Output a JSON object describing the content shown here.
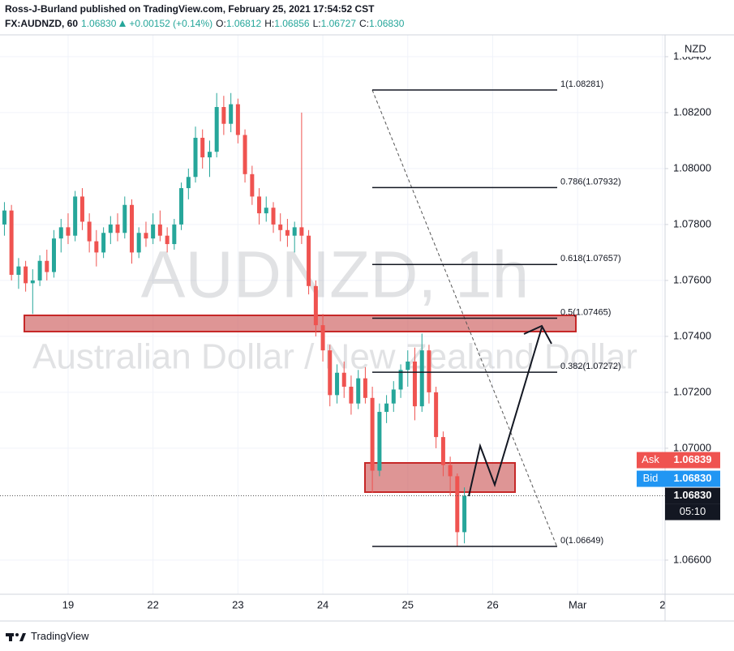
{
  "header": {
    "published": "Ross-J-Burland published on TradingView.com, February 25, 2021 17:54:52 CST",
    "symbol": "FX:AUDNZD, 60",
    "last": "1.06830",
    "change": "+0.00152 (+0.14%)",
    "ohlc": [
      {
        "key": "O:",
        "value": "1.06812"
      },
      {
        "key": "H:",
        "value": "1.06856"
      },
      {
        "key": "L:",
        "value": "1.06727"
      },
      {
        "key": "C:",
        "value": "1.06830"
      }
    ]
  },
  "chart_data": {
    "type": "candlestick",
    "title": "AUDNZD, 1h",
    "subtitle": "Australian Dollar / New Zealand Dollar",
    "currency": "NZD",
    "up_color": "#26a69a",
    "down_color": "#ef5350",
    "grid": true,
    "xlim": [
      -0.802,
      7.03
    ],
    "ylim": [
      1.06478,
      1.08478
    ],
    "xticks": [
      {
        "value": 0,
        "label": "19"
      },
      {
        "value": 1,
        "label": "22"
      },
      {
        "value": 2,
        "label": "23"
      },
      {
        "value": 3,
        "label": "24"
      },
      {
        "value": 4,
        "label": "25"
      },
      {
        "value": 5,
        "label": "26"
      },
      {
        "value": 6,
        "label": "Mar"
      },
      {
        "value": 7,
        "label": "2"
      }
    ],
    "yticks": [
      {
        "value": 1.066,
        "label": "1.06600"
      },
      {
        "value": 1.07,
        "label": "1.07000"
      },
      {
        "value": 1.072,
        "label": "1.07200"
      },
      {
        "value": 1.074,
        "label": "1.07400"
      },
      {
        "value": 1.076,
        "label": "1.07600"
      },
      {
        "value": 1.078,
        "label": "1.07800"
      },
      {
        "value": 1.08,
        "label": "1.08000"
      },
      {
        "value": 1.082,
        "label": "1.08200"
      },
      {
        "value": 1.084,
        "label": "1.08400"
      }
    ],
    "x": [
      -0.75,
      -0.667,
      -0.583,
      -0.5,
      -0.417,
      -0.333,
      -0.25,
      -0.167,
      -0.083,
      0,
      0.083,
      0.167,
      0.25,
      0.333,
      0.417,
      0.5,
      0.583,
      0.667,
      0.75,
      0.833,
      0.917,
      1,
      1.083,
      1.167,
      1.25,
      1.333,
      1.417,
      1.5,
      1.583,
      1.667,
      1.75,
      1.833,
      1.917,
      2,
      2.083,
      2.167,
      2.25,
      2.333,
      2.417,
      2.5,
      2.583,
      2.667,
      2.75,
      2.833,
      2.917,
      3,
      3.083,
      3.167,
      3.25,
      3.333,
      3.417,
      3.5,
      3.583,
      3.667,
      3.75,
      3.833,
      3.917,
      4,
      4.083,
      4.167,
      4.25,
      4.333,
      4.417,
      4.5,
      4.583,
      4.667
    ],
    "open": [
      1.078,
      1.0785,
      1.0762,
      1.0765,
      1.0759,
      1.076,
      1.0767,
      1.0763,
      1.0775,
      1.0779,
      1.0776,
      1.079,
      1.0781,
      1.0774,
      1.077,
      1.0777,
      1.078,
      1.0777,
      1.0787,
      1.077,
      1.0777,
      1.0775,
      1.078,
      1.0776,
      1.0773,
      1.078,
      1.0793,
      1.0797,
      1.0811,
      1.0804,
      1.0806,
      1.0822,
      1.0816,
      1.0823,
      1.0812,
      1.0798,
      1.079,
      1.0784,
      1.0786,
      1.078,
      1.0778,
      1.0776,
      1.0779,
      1.0776,
      1.0758,
      1.0744,
      1.0735,
      1.0719,
      1.0727,
      1.0722,
      1.0716,
      1.0725,
      1.0718,
      1.0692,
      1.0713,
      1.0716,
      1.0721,
      1.0728,
      1.0731,
      1.0715,
      1.0735,
      1.072,
      1.0704,
      1.0694,
      1.069,
      1.067
    ],
    "high": [
      1.0788,
      1.0787,
      1.0768,
      1.0767,
      1.0764,
      1.0769,
      1.0771,
      1.0778,
      1.0782,
      1.0784,
      1.0792,
      1.0793,
      1.0784,
      1.0778,
      1.0779,
      1.0783,
      1.0784,
      1.079,
      1.0789,
      1.0779,
      1.0781,
      1.0784,
      1.0785,
      1.0779,
      1.0782,
      1.0795,
      1.08,
      1.0815,
      1.0814,
      1.081,
      1.0827,
      1.0826,
      1.0827,
      1.0825,
      1.0814,
      1.0801,
      1.0793,
      1.079,
      1.0788,
      1.0784,
      1.0782,
      1.0781,
      1.082,
      1.0778,
      1.076,
      1.0748,
      1.0737,
      1.073,
      1.0731,
      1.0726,
      1.0728,
      1.0729,
      1.0722,
      1.0716,
      1.0719,
      1.0724,
      1.073,
      1.0735,
      1.0736,
      1.0741,
      1.0737,
      1.0722,
      1.0706,
      1.0697,
      1.0691,
      1.0686
    ],
    "low": [
      1.0776,
      1.076,
      1.0757,
      1.0756,
      1.0748,
      1.0758,
      1.076,
      1.0761,
      1.077,
      1.0773,
      1.0774,
      1.0778,
      1.077,
      1.0765,
      1.0768,
      1.0773,
      1.0774,
      1.0775,
      1.0766,
      1.0768,
      1.0772,
      1.0773,
      1.0774,
      1.077,
      1.0771,
      1.0778,
      1.0789,
      1.0795,
      1.08,
      1.0797,
      1.0804,
      1.0812,
      1.0813,
      1.0809,
      1.0795,
      1.0787,
      1.078,
      1.0781,
      1.0777,
      1.0774,
      1.0772,
      1.077,
      1.0773,
      1.0755,
      1.074,
      1.0731,
      1.0715,
      1.0716,
      1.0718,
      1.0712,
      1.0714,
      1.0716,
      1.0684,
      1.069,
      1.0709,
      1.0713,
      1.0718,
      1.0722,
      1.071,
      1.0713,
      1.0716,
      1.07,
      1.069,
      1.0683,
      1.0665,
      1.0666
    ],
    "close": [
      1.0785,
      1.0762,
      1.0765,
      1.0759,
      1.076,
      1.0767,
      1.0763,
      1.0775,
      1.0779,
      1.0776,
      1.079,
      1.0781,
      1.0774,
      1.077,
      1.0777,
      1.078,
      1.0777,
      1.0787,
      1.077,
      1.0777,
      1.0775,
      1.078,
      1.0776,
      1.0773,
      1.078,
      1.0793,
      1.0797,
      1.0811,
      1.0804,
      1.0806,
      1.0822,
      1.0816,
      1.0823,
      1.0812,
      1.0798,
      1.079,
      1.0784,
      1.0786,
      1.078,
      1.0778,
      1.0776,
      1.0779,
      1.0776,
      1.0758,
      1.0744,
      1.0735,
      1.0719,
      1.0727,
      1.0722,
      1.0716,
      1.0725,
      1.0718,
      1.0692,
      1.0713,
      1.0716,
      1.0721,
      1.0728,
      1.0731,
      1.0715,
      1.0735,
      1.072,
      1.0704,
      1.0694,
      1.069,
      1.067,
      1.0683
    ],
    "fib_levels": [
      {
        "value": 1.08281,
        "label": "1(1.08281)"
      },
      {
        "value": 1.07932,
        "label": "0.786(1.07932)"
      },
      {
        "value": 1.07657,
        "label": "0.618(1.07657)"
      },
      {
        "value": 1.07465,
        "label": "0.5(1.07465)"
      },
      {
        "value": 1.07272,
        "label": "0.382(1.07272)"
      },
      {
        "value": 1.06649,
        "label": "0(1.06649)"
      }
    ],
    "last_price": {
      "value": 1.0683,
      "label": "1.06830"
    },
    "countdown": "05:10",
    "ask": {
      "name": "Ask",
      "value": 1.06839
    },
    "bid": {
      "name": "Bid",
      "value": "1.06830"
    }
  },
  "footer": {
    "brand": "TradingView"
  }
}
